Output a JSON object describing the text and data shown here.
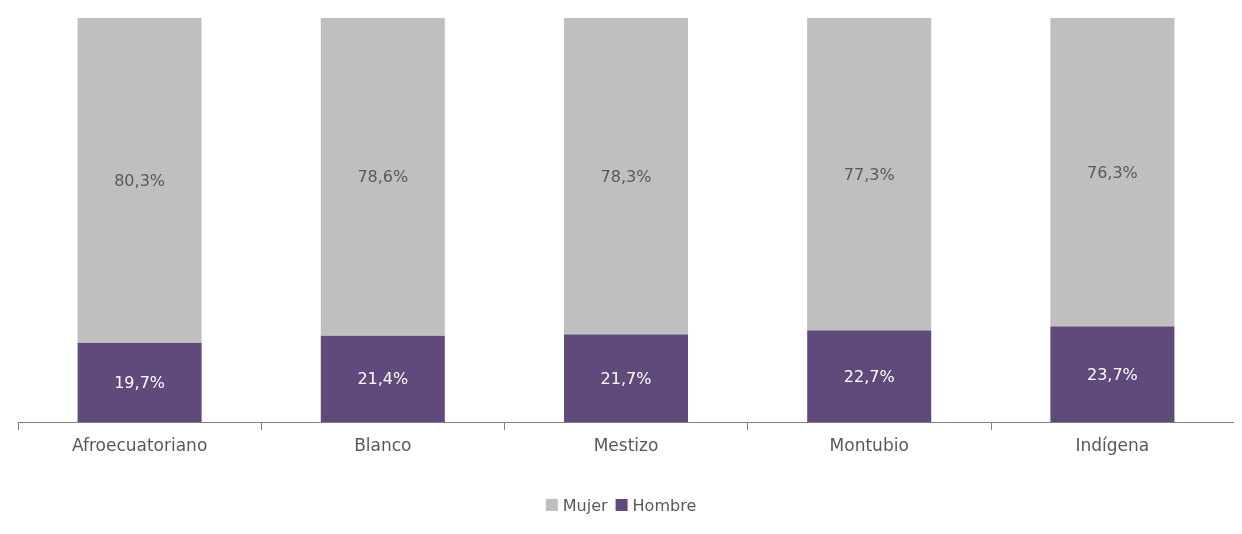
{
  "chart_data": {
    "type": "bar",
    "stacked": true,
    "categories": [
      "Afroecuatoriano",
      "Blanco",
      "Mestizo",
      "Montubio",
      "Indígena"
    ],
    "series": [
      {
        "name": "Hombre",
        "color": "#604a7b",
        "values": [
          19.7,
          21.4,
          21.7,
          22.7,
          23.7
        ],
        "value_labels": [
          "19,7%",
          "21,4%",
          "21,7%",
          "22,7%",
          "23,7%"
        ]
      },
      {
        "name": "Mujer",
        "color": "#bfbfbf",
        "values": [
          80.3,
          78.6,
          78.3,
          77.3,
          76.3
        ],
        "value_labels": [
          "80,3%",
          "78,6%",
          "78,3%",
          "77,3%",
          "76,3%"
        ]
      }
    ],
    "legend": "bottom",
    "grid": false
  }
}
